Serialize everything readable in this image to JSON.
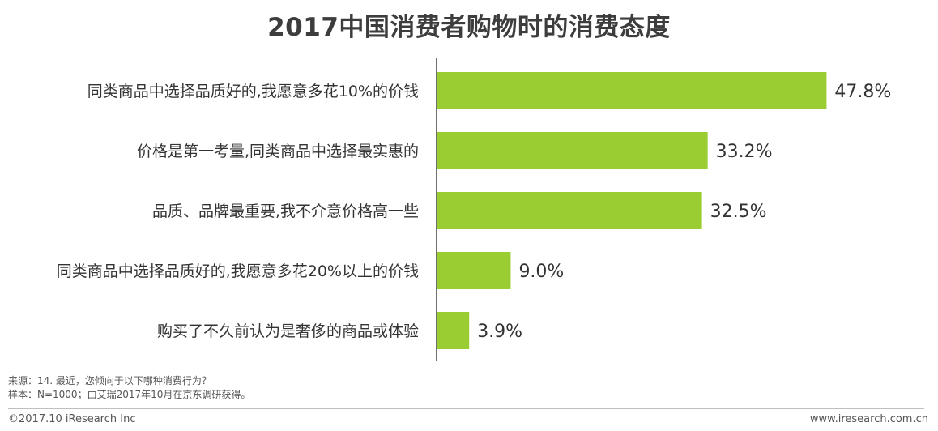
{
  "colors": {
    "bar": "#9ACD32",
    "axis": "#404040",
    "text": "#333333"
  },
  "chart_data": {
    "type": "bar",
    "orientation": "horizontal",
    "title": "2017中国消费者购物时的消费态度",
    "categories": [
      "同类商品中选择品质好的,我愿意多花10%的价钱",
      "价格是第一考量,同类商品中选择最实惠的",
      "品质、品牌最重要,我不介意价格高一些",
      "同类商品中选择品质好的,我愿意多花20%以上的价钱",
      "购买了不久前认为是奢侈的商品或体验"
    ],
    "values": [
      47.8,
      33.2,
      32.5,
      9.0,
      3.9
    ],
    "value_labels": [
      "47.8%",
      "33.2%",
      "32.5%",
      "9.0%",
      "3.9%"
    ],
    "xlim": [
      0,
      50
    ],
    "grid": false,
    "legend": false
  },
  "notes": {
    "source": "来源：14. 最近，您倾向于以下哪种消费行为？",
    "sample": "样本：N=1000；由艾瑞2017年10月在京东调研获得。"
  },
  "footer": {
    "copyright": "©2017.10 iResearch Inc",
    "website": "www.iresearch.com.cn"
  }
}
